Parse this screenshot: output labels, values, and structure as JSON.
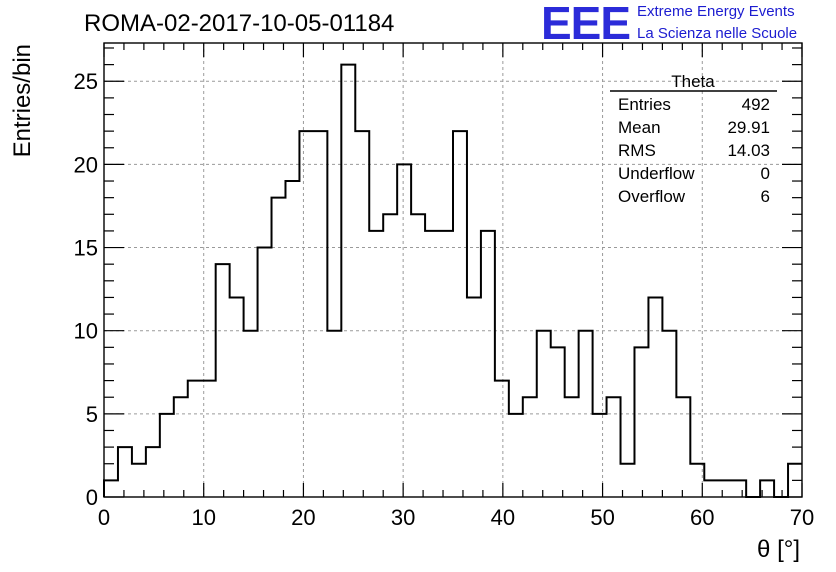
{
  "header": {
    "title": "ROMA-02-2017-10-05-01184",
    "logo": "EEE",
    "logo_line1": "Extreme Energy Events",
    "logo_line2": "La Scienza nelle Scuole",
    "logo_color": "#1c1cd0"
  },
  "stats": {
    "name": "Theta",
    "rows": [
      {
        "label": "Entries",
        "value": "492"
      },
      {
        "label": "Mean",
        "value": "29.91"
      },
      {
        "label": "RMS",
        "value": "14.03"
      },
      {
        "label": "Underflow",
        "value": "0"
      },
      {
        "label": "Overflow",
        "value": "6"
      }
    ]
  },
  "chart_data": {
    "type": "bar",
    "style": "step-histogram",
    "xlabel": "θ [°]",
    "ylabel": "Entries/bin",
    "xlim": [
      0,
      70
    ],
    "ylim": [
      0,
      27.3
    ],
    "grid": true,
    "bin_width": 1.4,
    "x_ticks": [
      0,
      10,
      20,
      30,
      40,
      50,
      60,
      70
    ],
    "y_ticks": [
      0,
      5,
      10,
      15,
      20,
      25
    ],
    "values": [
      1,
      3,
      2,
      3,
      5,
      6,
      7,
      7,
      14,
      12,
      10,
      15,
      18,
      19,
      22,
      22,
      10,
      26,
      22,
      16,
      17,
      20,
      17,
      16,
      16,
      22,
      12,
      16,
      7,
      5,
      6,
      10,
      9,
      6,
      10,
      5,
      6,
      2,
      9,
      12,
      10,
      6,
      2,
      1,
      1,
      1,
      0,
      1,
      0,
      2
    ]
  }
}
